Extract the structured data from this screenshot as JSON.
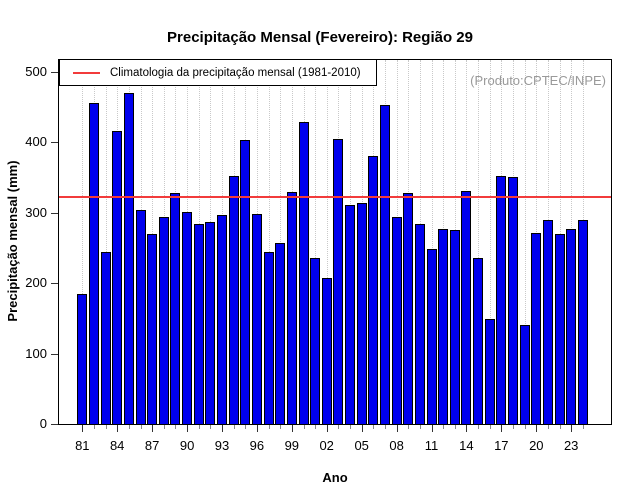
{
  "title": "Precipitação Mensal (Fevereiro): Região 29",
  "watermark": "(Produto:CPTEC/INPE)",
  "legend": {
    "label": "Climatologia da precipitação mensal (1981-2010)",
    "swatch_color": "#f23b3b"
  },
  "colors": {
    "bar_fill": "#0000ee",
    "bar_border": "#000000",
    "reference_line": "#f23b3b",
    "gridline": "#c9c9c9",
    "watermark_text": "#9a9a9a"
  },
  "chart_data": {
    "type": "bar",
    "title": "Precipitação Mensal (Fevereiro): Região 29",
    "xlabel": "Ano",
    "ylabel": "Precipitação mensal (mm)",
    "ylim": [
      0,
      518
    ],
    "yticks": [
      0,
      100,
      200,
      300,
      400,
      500
    ],
    "grid": "vertical-dotted",
    "legend_position": "top-left",
    "categories": [
      1981,
      1982,
      1983,
      1984,
      1985,
      1986,
      1987,
      1988,
      1989,
      1990,
      1991,
      1992,
      1993,
      1994,
      1995,
      1996,
      1997,
      1998,
      1999,
      2000,
      2001,
      2002,
      2003,
      2004,
      2005,
      2006,
      2007,
      2008,
      2009,
      2010,
      2011,
      2012,
      2013,
      2014,
      2015,
      2016,
      2017,
      2018,
      2019,
      2020,
      2021,
      2022,
      2023,
      2024
    ],
    "values": [
      184,
      456,
      244,
      416,
      469,
      303,
      269,
      294,
      327,
      301,
      283,
      286,
      296,
      352,
      403,
      298,
      244,
      257,
      329,
      428,
      236,
      207,
      404,
      311,
      313,
      380,
      452,
      293,
      327,
      284,
      248,
      277,
      275,
      330,
      235,
      149,
      352,
      351,
      140,
      271,
      290,
      269,
      277,
      290
    ],
    "xtick_labels": [
      "81",
      "84",
      "87",
      "90",
      "93",
      "96",
      "99",
      "02",
      "05",
      "08",
      "11",
      "14",
      "17",
      "20",
      "23"
    ],
    "xtick_label_step": 3,
    "reference_line": {
      "name": "Climatologia da precipitação mensal (1981-2010)",
      "value": 321.5,
      "color": "#f23b3b"
    }
  }
}
